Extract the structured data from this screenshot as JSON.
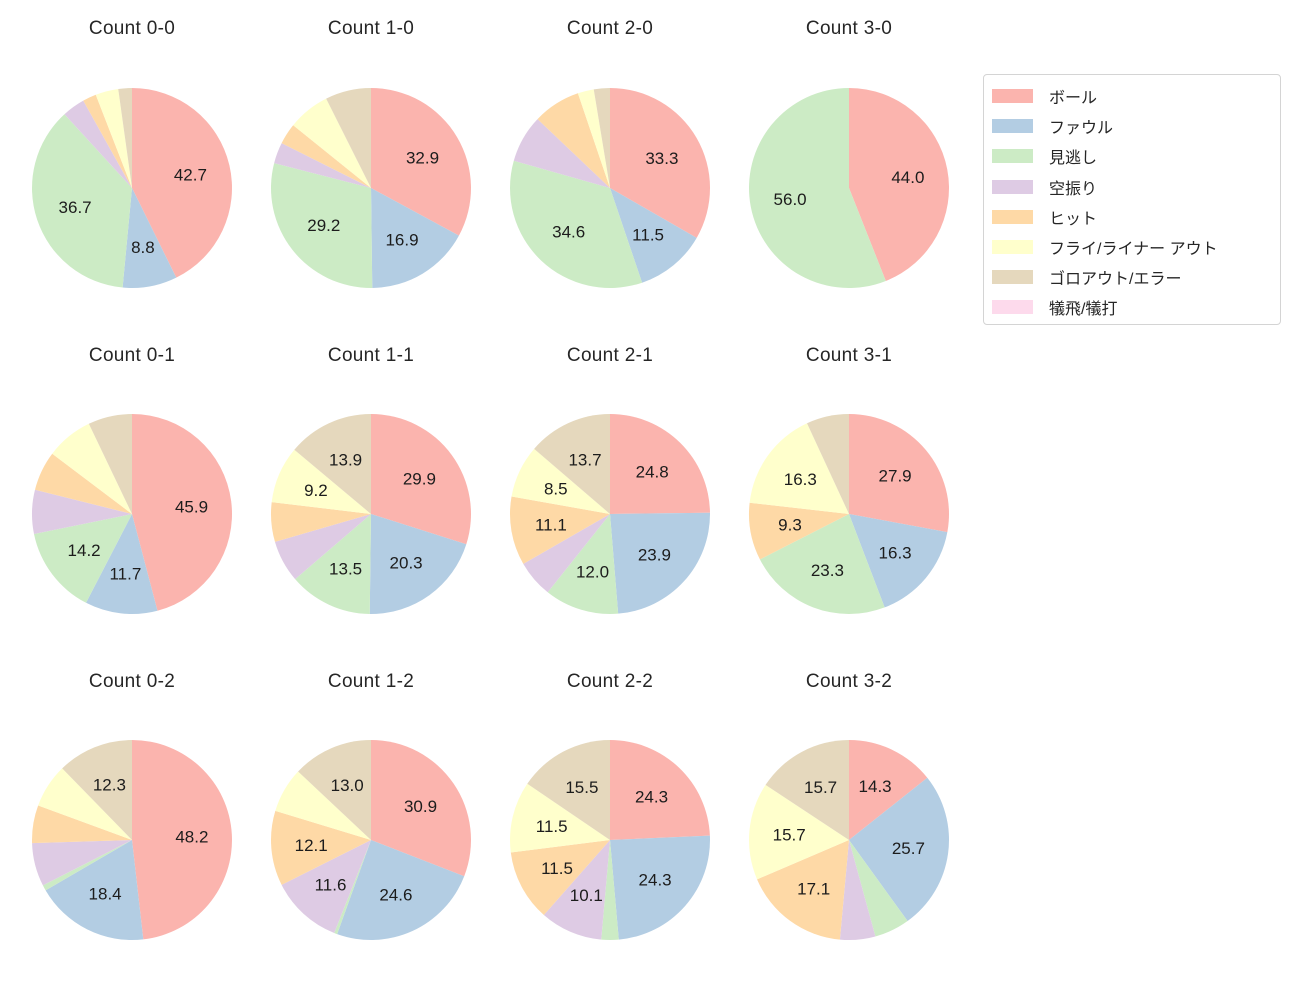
{
  "figure": {
    "background": "#ffffff"
  },
  "legend": {
    "items": [
      {
        "label": "ボール",
        "color": "#fbb4ae"
      },
      {
        "label": "ファウル",
        "color": "#b3cde3"
      },
      {
        "label": "見逃し",
        "color": "#ccebc5"
      },
      {
        "label": "空振り",
        "color": "#decbe4"
      },
      {
        "label": "ヒット",
        "color": "#fed9a6"
      },
      {
        "label": "フライ/ライナー アウト",
        "color": "#ffffcc"
      },
      {
        "label": "ゴロアウト/エラー",
        "color": "#e5d8bd"
      },
      {
        "label": "犠飛/犠打",
        "color": "#fddaec"
      }
    ]
  },
  "chart_data": {
    "type": "pie",
    "grid": {
      "rows": 3,
      "cols": 4
    },
    "legend_position": "upper right",
    "start_angle_deg": 90,
    "direction": "clockwise",
    "label_min_pct": 8,
    "label_distance_fraction": 0.6,
    "categories": [
      "ボール",
      "ファウル",
      "見逃し",
      "空振り",
      "ヒット",
      "フライ/ライナー アウト",
      "ゴロアウト/エラー",
      "犠飛/犠打"
    ],
    "colors": [
      "#fbb4ae",
      "#b3cde3",
      "#ccebc5",
      "#decbe4",
      "#fed9a6",
      "#ffffcc",
      "#e5d8bd",
      "#fddaec"
    ],
    "charts": [
      {
        "title": "Count 0-0",
        "values": [
          42.7,
          8.8,
          36.7,
          3.7,
          2.2,
          3.7,
          2.2,
          0
        ]
      },
      {
        "title": "Count 1-0",
        "values": [
          32.9,
          16.9,
          29.2,
          3.4,
          3.4,
          6.8,
          7.4,
          0
        ]
      },
      {
        "title": "Count 2-0",
        "values": [
          33.3,
          11.5,
          34.6,
          7.7,
          7.7,
          2.6,
          2.6,
          0
        ]
      },
      {
        "title": "Count 3-0",
        "values": [
          44.0,
          0,
          56.0,
          0,
          0,
          0,
          0,
          0
        ]
      },
      {
        "title": "Count 0-1",
        "values": [
          45.9,
          11.7,
          14.2,
          7.1,
          6.4,
          7.6,
          7.1,
          0
        ]
      },
      {
        "title": "Count 1-1",
        "values": [
          29.9,
          20.3,
          13.5,
          6.8,
          6.4,
          9.2,
          13.9,
          0
        ]
      },
      {
        "title": "Count 2-1",
        "values": [
          24.8,
          23.9,
          12.0,
          6.0,
          11.1,
          8.5,
          13.7,
          0
        ]
      },
      {
        "title": "Count 3-1",
        "values": [
          27.9,
          16.3,
          23.3,
          0,
          9.3,
          16.3,
          6.9,
          0
        ]
      },
      {
        "title": "Count 0-2",
        "values": [
          48.2,
          18.4,
          0.9,
          7.0,
          6.1,
          7.1,
          12.3,
          0
        ]
      },
      {
        "title": "Count 1-2",
        "values": [
          30.9,
          24.6,
          0.5,
          11.6,
          12.1,
          7.3,
          13.0,
          0
        ]
      },
      {
        "title": "Count 2-2",
        "values": [
          24.3,
          24.3,
          2.8,
          10.1,
          11.5,
          11.5,
          15.5,
          0
        ]
      },
      {
        "title": "Count 3-2",
        "values": [
          14.3,
          25.7,
          5.7,
          5.7,
          17.1,
          15.7,
          15.7,
          0
        ]
      }
    ]
  }
}
